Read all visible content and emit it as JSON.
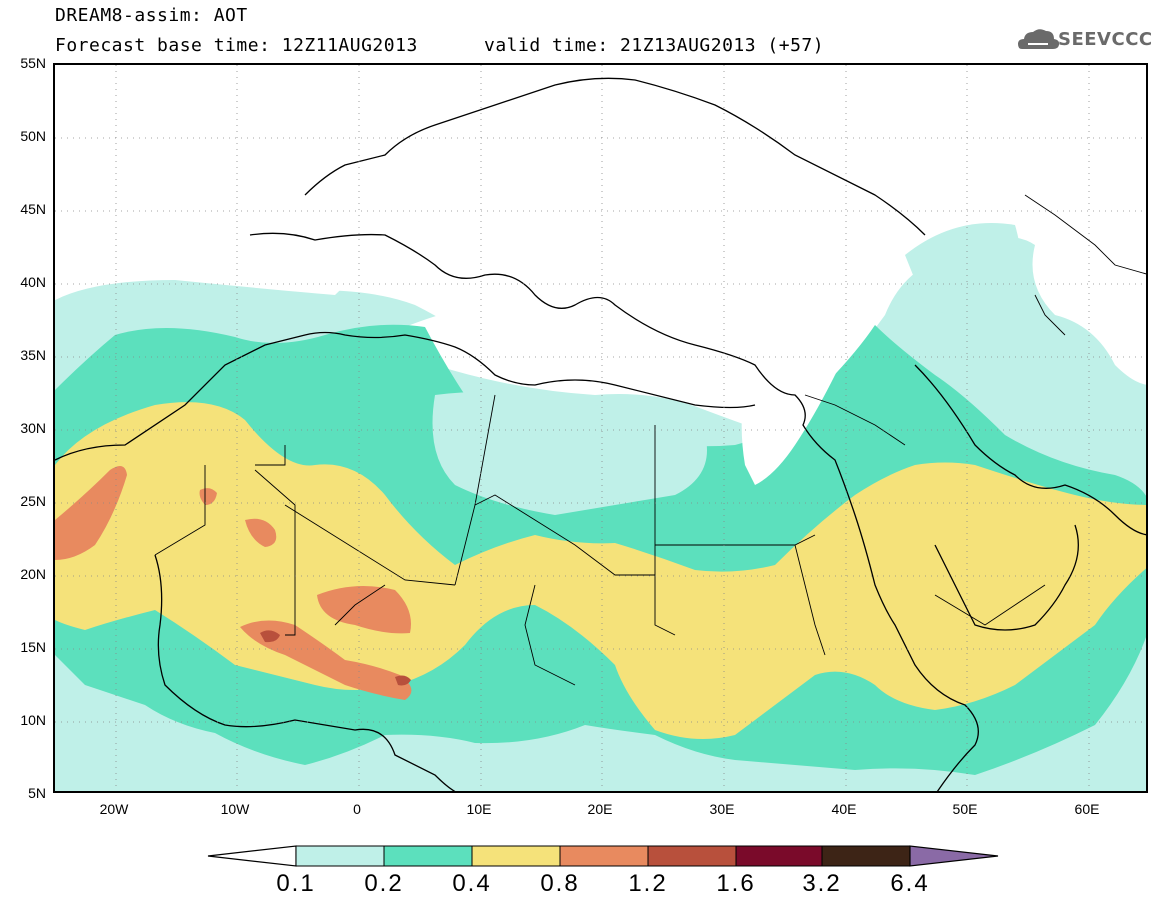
{
  "header": {
    "title": "DREAM8-assim: AOT",
    "base_time": "Forecast base time: 12Z11AUG2013",
    "valid_time": "valid time: 21Z13AUG2013 (+57)",
    "logo_text": "SEEVCCC",
    "logo_icon": "cloud-icon"
  },
  "map": {
    "lat_labels": [
      "55N",
      "50N",
      "45N",
      "40N",
      "35N",
      "30N",
      "25N",
      "20N",
      "15N",
      "10N",
      "5N"
    ],
    "lon_labels": [
      "20W",
      "10W",
      "0",
      "10E",
      "20E",
      "30E",
      "40E",
      "50E",
      "60E"
    ],
    "extent": {
      "lon_min": -25,
      "lon_max": 65,
      "lat_min": 5,
      "lat_max": 55
    },
    "grid": "dotted"
  },
  "colorbar": {
    "labels": [
      "0.1",
      "0.2",
      "0.4",
      "0.8",
      "1.2",
      "1.6",
      "3.2",
      "6.4"
    ],
    "colors": [
      "#ffffff",
      "#bff0e8",
      "#5ce0bd",
      "#f5e27a",
      "#e88a5f",
      "#b8503c",
      "#7a0a2a",
      "#3d2416",
      "#8a6aa6"
    ]
  }
}
